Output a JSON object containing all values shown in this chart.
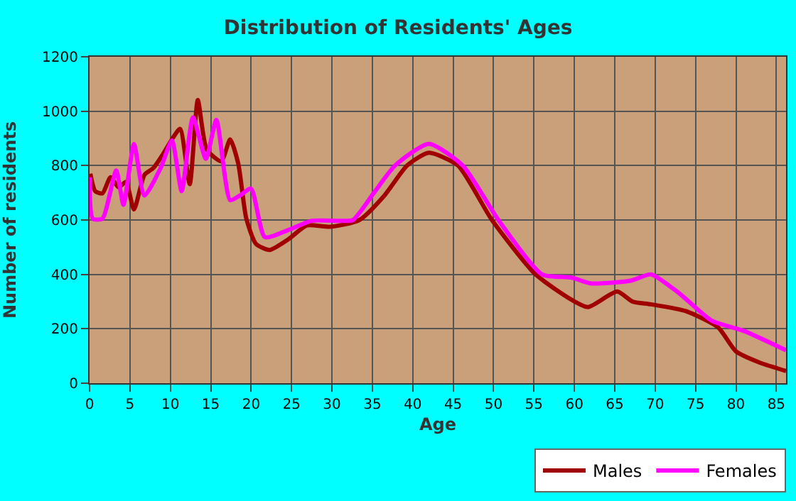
{
  "chart_data": {
    "type": "line",
    "title": "Distribution of Residents' Ages",
    "xlabel": "Age",
    "ylabel": "Number of residents",
    "xlim": [
      0,
      86.2
    ],
    "xticks": [
      0,
      5,
      10,
      15,
      20,
      25,
      30,
      35,
      40,
      45,
      50,
      55,
      60,
      65,
      70,
      75,
      80,
      85
    ],
    "ylim": [
      0,
      1200
    ],
    "yticks": [
      0,
      200,
      400,
      600,
      800,
      1000,
      1200
    ],
    "grid": true,
    "legend": "bottom right",
    "marker": "none",
    "line_style": "solid",
    "series": [
      {
        "name": "Males",
        "color": "#a00000",
        "x": [
          0.1,
          0.7,
          1.6,
          2.6,
          3.6,
          4.5,
          5.5,
          6.8,
          7.9,
          9.1,
          10.1,
          11.2,
          12.4,
          13.4,
          14.5,
          16.3,
          17.4,
          18.4,
          19.4,
          20.6,
          22.3,
          24.6,
          26.9,
          29.8,
          33.4,
          36.5,
          39.3,
          42,
          45.6,
          49.8,
          55.2,
          59.7,
          61.7,
          65.3,
          67.2,
          69.5,
          73.8,
          77.8,
          80,
          83,
          86.2
        ],
        "values": [
          770,
          706,
          698,
          757,
          720,
          740,
          639,
          766,
          791,
          842,
          892,
          935,
          732,
          1041,
          859,
          816,
          896,
          808,
          605,
          512,
          490,
          529,
          580,
          575,
          600,
          690,
          800,
          847,
          800,
          600,
          400,
          306,
          280,
          337,
          300,
          290,
          265,
          205,
          117,
          75,
          45
        ]
      },
      {
        "name": "Females",
        "color": "#ff00ff",
        "x": [
          0,
          0.4,
          1.6,
          3.3,
          4.2,
          5.5,
          6.8,
          8.8,
          10.2,
          11.4,
          12.8,
          14.4,
          15.7,
          17.4,
          18.6,
          20,
          21.7,
          24.6,
          27.5,
          31,
          32.6,
          35.2,
          37.8,
          42,
          46.2,
          50.6,
          56,
          59.7,
          62,
          67,
          69.5,
          73,
          77,
          81,
          86.2
        ],
        "values": [
          757,
          605,
          605,
          782,
          656,
          879,
          690,
          791,
          892,
          706,
          977,
          825,
          968,
          673,
          690,
          715,
          537,
          563,
          597,
          597,
          600,
          700,
          800,
          880,
          800,
          600,
          400,
          388,
          367,
          377,
          400,
          330,
          230,
          192,
          121
        ]
      }
    ]
  }
}
